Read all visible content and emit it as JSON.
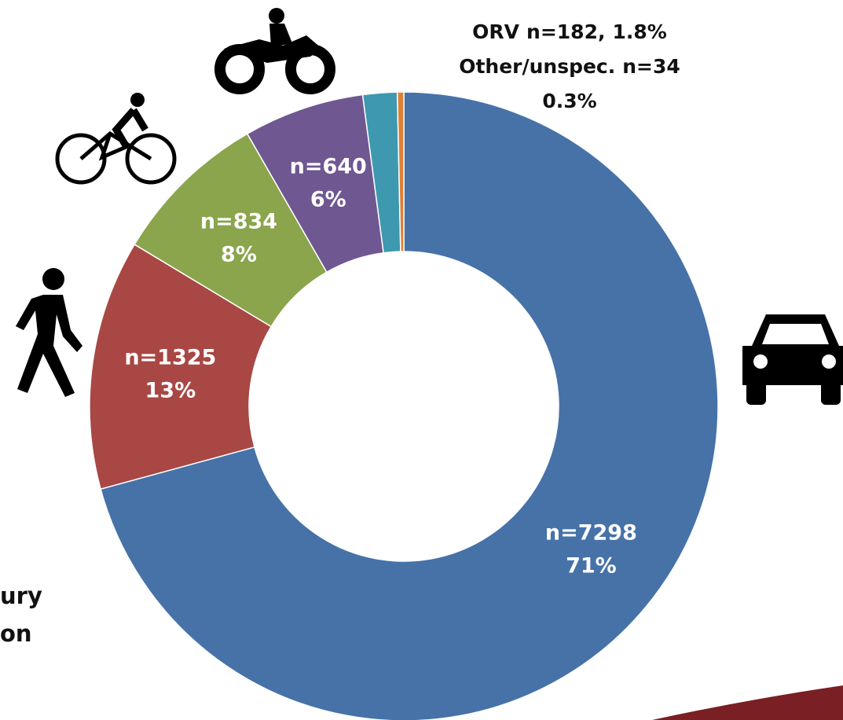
{
  "chart_data": {
    "type": "donut",
    "categories": [
      null,
      null,
      null,
      null,
      "ORV",
      "Other/unspec."
    ],
    "values": [
      7298,
      1325,
      834,
      640,
      182,
      34
    ],
    "value_labels": [
      "n=7298",
      "n=1325",
      "n=834",
      "n=640",
      "n=182,",
      "n=34"
    ],
    "percents": [
      71,
      13,
      8,
      6,
      1.8,
      0.3
    ],
    "percent_labels": [
      "71%",
      "13%",
      "8%",
      "6%",
      "1.8%",
      "0.3%"
    ],
    "colors": [
      "#4672a8",
      "#a84744",
      "#8aa54c",
      "#6f5791",
      "#3e98b0",
      "#e07f33"
    ],
    "annotations": [
      "ury",
      "on"
    ]
  }
}
